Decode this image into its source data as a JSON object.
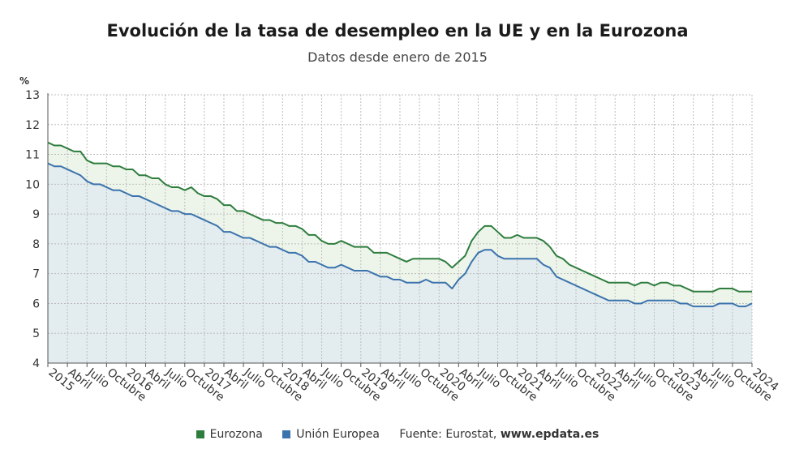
{
  "chart_data": {
    "type": "area",
    "title": "Evolución de la tasa de desempleo en la UE y en la Eurozona",
    "subtitle": "Datos desde enero de 2015",
    "ylabel": "%",
    "ylim": [
      4,
      13
    ],
    "yticks": [
      "4",
      "5",
      "6",
      "7",
      "8",
      "9",
      "10",
      "11",
      "12",
      "13"
    ],
    "grid": true,
    "x_tick_labels": [
      "2015",
      "Abril",
      "Julio",
      "Octubre",
      "2016",
      "Abril",
      "Julio",
      "Octubre",
      "2017",
      "Abril",
      "Julio",
      "Octubre",
      "2018",
      "Abril",
      "Julio",
      "Octubre",
      "2019",
      "Abril",
      "Julio",
      "Octubre",
      "2020",
      "Abril",
      "Julio",
      "Octubre",
      "2021",
      "Abril",
      "Julio",
      "Octubre",
      "2022",
      "Abril",
      "Julio",
      "Octubre",
      "2023",
      "Abril",
      "Julio",
      "Octubre",
      "2024"
    ],
    "x_start": "2015-01",
    "x_end": "2024-01",
    "series": [
      {
        "name": "Eurozona",
        "color": "#2e7d3e",
        "fill": "#edf5ea",
        "values": [
          11.4,
          11.3,
          11.3,
          11.2,
          11.1,
          11.1,
          10.8,
          10.7,
          10.7,
          10.7,
          10.6,
          10.6,
          10.5,
          10.5,
          10.3,
          10.3,
          10.2,
          10.2,
          10.0,
          9.9,
          9.9,
          9.8,
          9.9,
          9.7,
          9.6,
          9.6,
          9.5,
          9.3,
          9.3,
          9.1,
          9.1,
          9.0,
          8.9,
          8.8,
          8.8,
          8.7,
          8.7,
          8.6,
          8.6,
          8.5,
          8.3,
          8.3,
          8.1,
          8.0,
          8.0,
          8.1,
          8.0,
          7.9,
          7.9,
          7.9,
          7.7,
          7.7,
          7.7,
          7.6,
          7.5,
          7.4,
          7.5,
          7.5,
          7.5,
          7.5,
          7.5,
          7.4,
          7.2,
          7.4,
          7.6,
          8.1,
          8.4,
          8.6,
          8.6,
          8.4,
          8.2,
          8.2,
          8.3,
          8.2,
          8.2,
          8.2,
          8.1,
          7.9,
          7.6,
          7.5,
          7.3,
          7.2,
          7.1,
          7.0,
          6.9,
          6.8,
          6.7,
          6.7,
          6.7,
          6.7,
          6.6,
          6.7,
          6.7,
          6.6,
          6.7,
          6.7,
          6.6,
          6.6,
          6.5,
          6.4,
          6.4,
          6.4,
          6.4,
          6.5,
          6.5,
          6.5,
          6.4,
          6.4,
          6.4
        ]
      },
      {
        "name": "Unión Europea",
        "color": "#3b73ad",
        "fill": "#e3ecee",
        "values": [
          10.7,
          10.6,
          10.6,
          10.5,
          10.4,
          10.3,
          10.1,
          10.0,
          10.0,
          9.9,
          9.8,
          9.8,
          9.7,
          9.6,
          9.6,
          9.5,
          9.4,
          9.3,
          9.2,
          9.1,
          9.1,
          9.0,
          9.0,
          8.9,
          8.8,
          8.7,
          8.6,
          8.4,
          8.4,
          8.3,
          8.2,
          8.2,
          8.1,
          8.0,
          7.9,
          7.9,
          7.8,
          7.7,
          7.7,
          7.6,
          7.4,
          7.4,
          7.3,
          7.2,
          7.2,
          7.3,
          7.2,
          7.1,
          7.1,
          7.1,
          7.0,
          6.9,
          6.9,
          6.8,
          6.8,
          6.7,
          6.7,
          6.7,
          6.8,
          6.7,
          6.7,
          6.7,
          6.5,
          6.8,
          7.0,
          7.4,
          7.7,
          7.8,
          7.8,
          7.6,
          7.5,
          7.5,
          7.5,
          7.5,
          7.5,
          7.5,
          7.3,
          7.2,
          6.9,
          6.8,
          6.7,
          6.6,
          6.5,
          6.4,
          6.3,
          6.2,
          6.1,
          6.1,
          6.1,
          6.1,
          6.0,
          6.0,
          6.1,
          6.1,
          6.1,
          6.1,
          6.1,
          6.0,
          6.0,
          5.9,
          5.9,
          5.9,
          5.9,
          6.0,
          6.0,
          6.0,
          5.9,
          5.9,
          6.0
        ]
      }
    ]
  },
  "legend": {
    "items": [
      {
        "label": "Eurozona",
        "color": "#2e7d3e"
      },
      {
        "label": "Unión Europea",
        "color": "#3b73ad"
      }
    ],
    "source_prefix": "Fuente: Eurostat, ",
    "source_site": "www.epdata.es"
  }
}
